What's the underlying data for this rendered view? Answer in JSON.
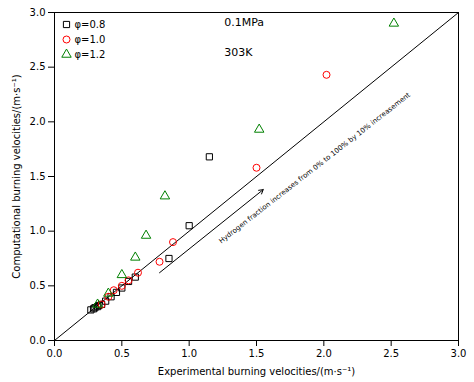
{
  "chart_data": {
    "type": "scatter",
    "xlabel": "Experimental burning velocities/(m·s⁻¹)",
    "ylabel": "Computational burning velocities/(m·s⁻¹)",
    "series": [
      {
        "name": "φ=0.8",
        "color": "black",
        "marker": "square",
        "x": [
          0.27,
          0.29,
          0.3,
          0.32,
          0.33,
          0.35,
          0.38,
          0.42,
          0.46,
          0.5,
          0.55,
          0.6,
          0.85,
          1.0,
          1.15
        ],
        "values": [
          0.28,
          0.29,
          0.3,
          0.31,
          0.32,
          0.33,
          0.36,
          0.4,
          0.44,
          0.48,
          0.54,
          0.58,
          0.75,
          1.05,
          1.68
        ]
      },
      {
        "name": "φ=1.0",
        "color": "red",
        "marker": "circle",
        "x": [
          0.35,
          0.4,
          0.44,
          0.5,
          0.55,
          0.62,
          0.78,
          0.88,
          1.5,
          2.02
        ],
        "values": [
          0.33,
          0.4,
          0.46,
          0.5,
          0.55,
          0.62,
          0.72,
          0.9,
          1.58,
          2.43
        ]
      },
      {
        "name": "φ=1.2",
        "color": "green",
        "marker": "triangle",
        "x": [
          0.32,
          0.4,
          0.5,
          0.6,
          0.68,
          0.82,
          1.52,
          2.52
        ],
        "values": [
          0.33,
          0.43,
          0.6,
          0.76,
          0.96,
          1.32,
          1.93,
          2.9
        ]
      }
    ],
    "xlim": [
      0,
      3
    ],
    "ylim": [
      0,
      3
    ],
    "xticks": [
      {
        "value": 0,
        "label": "0.0"
      },
      0.5,
      {
        "value": 1,
        "label": "1.0"
      },
      1.5,
      {
        "value": 2,
        "label": "2.0"
      },
      2.5,
      {
        "value": 3,
        "label": "3.0"
      }
    ],
    "yticks": [
      {
        "value": 0,
        "label": "0.0"
      },
      0.5,
      {
        "value": 1,
        "label": "1.0"
      },
      1.5,
      {
        "value": 2,
        "label": "2.0"
      },
      2.5,
      {
        "value": 3,
        "label": "3.0"
      }
    ],
    "grid": false,
    "legend": "upper left",
    "annotations": [
      {
        "text": "0.1MPa"
      },
      {
        "text": "303K"
      },
      {
        "text": "Hydrogen fraction increases from 0% to 100% by 10% increasement",
        "arrow_from": [
          0.78,
          0.62
        ],
        "arrow_to": [
          1.55,
          1.38
        ]
      }
    ]
  }
}
